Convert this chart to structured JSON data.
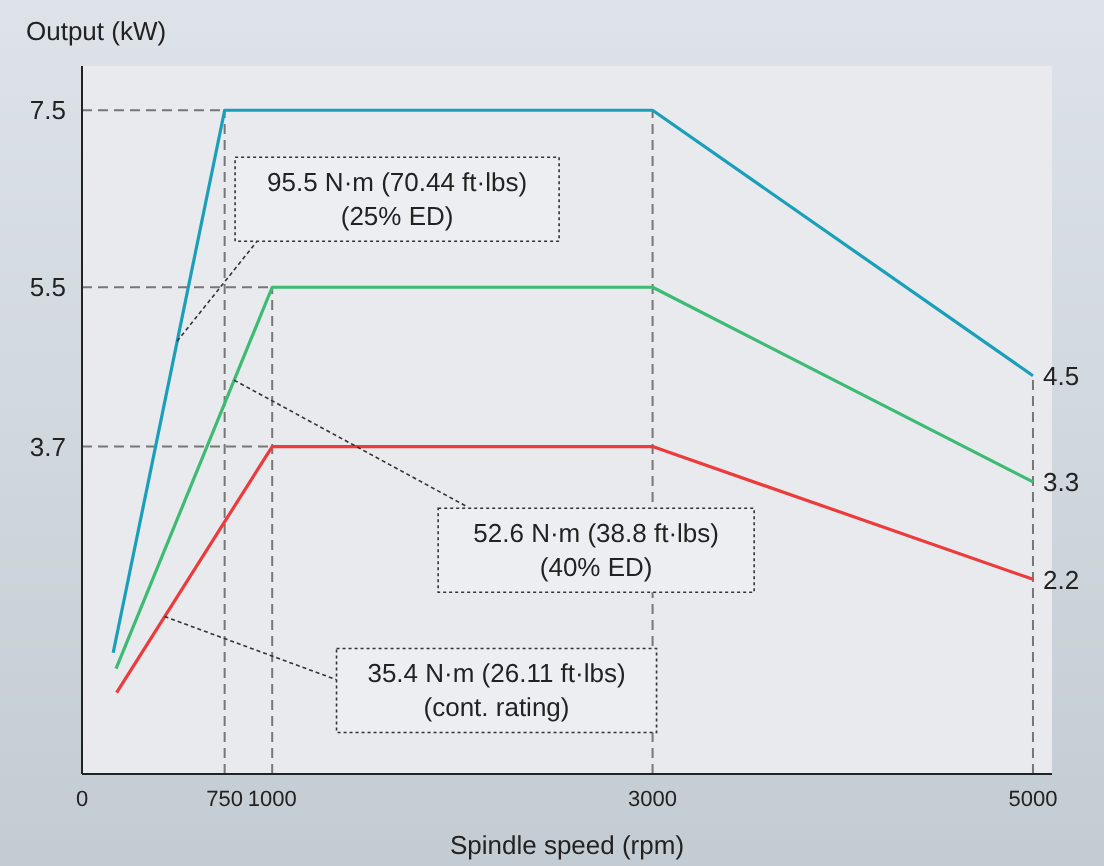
{
  "chart_data": {
    "type": "line",
    "xlabel": "Spindle speed (rpm)",
    "ylabel": "Output (kW)",
    "xlim": [
      0,
      5100
    ],
    "xticks": [
      0,
      750,
      1000,
      3000,
      5000
    ],
    "ylim": [
      0,
      8
    ],
    "yticks": [
      3.7,
      5.5,
      7.5
    ],
    "grid": false,
    "marker": "none",
    "line_style": "solid",
    "series": [
      {
        "color": "#1a9fba",
        "x": [
          164,
          750,
          3000,
          5000
        ],
        "values": [
          1.37,
          7.5,
          7.5,
          4.5
        ],
        "value_labels": [
          null,
          null,
          null,
          "4.5"
        ]
      },
      {
        "color": "#3dbb72",
        "x": [
          179,
          1000,
          3000,
          5000
        ],
        "values": [
          1.19,
          5.5,
          5.5,
          3.3
        ],
        "value_labels": [
          null,
          null,
          null,
          "3.3"
        ]
      },
      {
        "color": "#eb3b3b",
        "x": [
          182,
          1000,
          3000,
          5000
        ],
        "values": [
          0.92,
          3.7,
          3.7,
          2.2
        ],
        "value_labels": [
          null,
          null,
          null,
          "2.2"
        ]
      }
    ],
    "ref_lines": [
      {
        "axis": "x",
        "value": 750,
        "line_style": "dashed",
        "color": "#777777"
      },
      {
        "axis": "x",
        "value": 1000,
        "line_style": "dashed",
        "color": "#777777"
      },
      {
        "axis": "x",
        "value": 3000,
        "line_style": "dashed",
        "color": "#777777"
      },
      {
        "axis": "x",
        "value": 5000,
        "line_style": "dashed",
        "color": "#777777"
      },
      {
        "axis": "y",
        "value": 7.5,
        "line_style": "dashed",
        "color": "#777777"
      },
      {
        "axis": "y",
        "value": 5.5,
        "line_style": "dashed",
        "color": "#777777"
      },
      {
        "axis": "y",
        "value": 3.7,
        "line_style": "dashed",
        "color": "#777777"
      }
    ],
    "annotations": [
      {
        "text": "95.5 N·m (70.44 ft·lbs)\n(25% ED)",
        "x": 500,
        "y": 4.89
      },
      {
        "text": "52.6 N·m (38.8 ft·lbs)\n(40% ED)",
        "x": 800,
        "y": 4.45
      },
      {
        "text": "35.4 N·m (26.11 ft·lbs)\n(cont. rating)",
        "x": 434,
        "y": 1.78
      }
    ]
  }
}
